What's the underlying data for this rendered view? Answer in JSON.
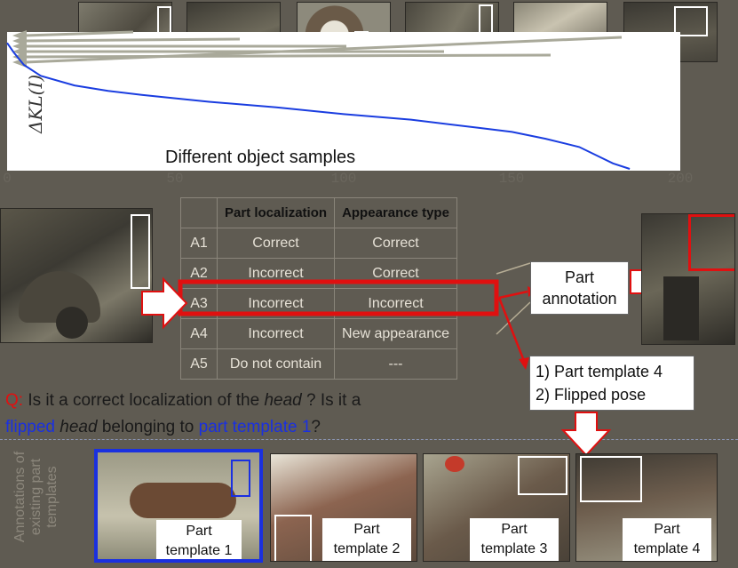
{
  "chart": {
    "ylabel": "ΔKL(I)",
    "xlabel": "Different object samples",
    "xticks": [
      "0",
      "50",
      "100",
      "150",
      "200"
    ]
  },
  "chart_data": {
    "type": "line",
    "title": "",
    "xlabel": "Different object samples",
    "ylabel": "ΔKL(I)",
    "xlim": [
      0,
      200
    ],
    "series": [
      {
        "x": [
          0,
          2,
          5,
          10,
          20,
          30,
          40,
          60,
          80,
          100,
          120,
          140,
          150,
          160,
          170,
          175,
          180,
          185
        ],
        "y": [
          0.92,
          0.85,
          0.76,
          0.68,
          0.61,
          0.57,
          0.54,
          0.49,
          0.45,
          0.4,
          0.36,
          0.3,
          0.27,
          0.22,
          0.16,
          0.1,
          0.04,
          0.0
        ]
      }
    ],
    "color": "#1a3de0"
  },
  "table": {
    "headers": [
      "",
      "Part localization",
      "Appearance type"
    ],
    "rows": [
      [
        "A1",
        "Correct",
        "Correct"
      ],
      [
        "A2",
        "Incorrect",
        "Correct"
      ],
      [
        "A3",
        "Incorrect",
        "Incorrect"
      ],
      [
        "A4",
        "Incorrect",
        "New appearance"
      ],
      [
        "A5",
        "Do not contain",
        "---"
      ]
    ]
  },
  "part_annotation": "Part annotation",
  "result_box": {
    "line1": "1) Part template 4",
    "line2": "2) Flipped pose"
  },
  "question": {
    "q": "Q:",
    "t1": " Is it a correct localization of the ",
    "head1": "head",
    "t2": " ? Is it a ",
    "flipped": "flipped",
    "t3": " ",
    "head2": "head",
    "t4": " belonging to ",
    "tpl": "part template 1",
    "t5": "?"
  },
  "side_label": "Annotations of existing part templates",
  "templates": [
    {
      "label": "Part template 1"
    },
    {
      "label": "Part template 2"
    },
    {
      "label": "Part template 3"
    },
    {
      "label": "Part template 4"
    }
  ],
  "colors": {
    "highlight_red": "#e01010",
    "selected_blue": "#1a30e0",
    "curve_blue": "#1a3de0"
  }
}
